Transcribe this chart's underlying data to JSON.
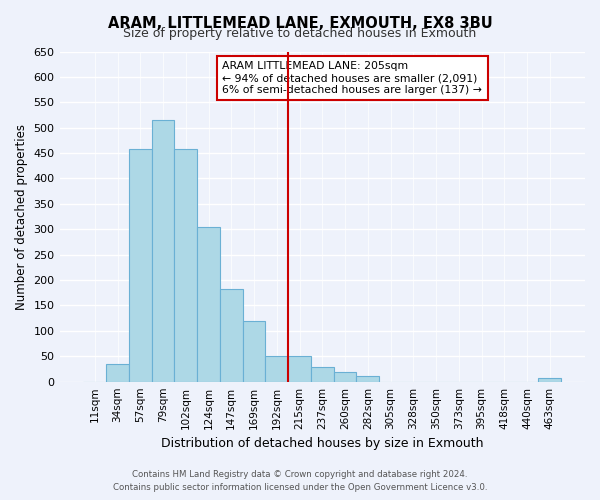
{
  "title": "ARAM, LITTLEMEAD LANE, EXMOUTH, EX8 3BU",
  "subtitle": "Size of property relative to detached houses in Exmouth",
  "xlabel": "Distribution of detached houses by size in Exmouth",
  "ylabel": "Number of detached properties",
  "bar_color": "#add8e6",
  "bar_edge_color": "#6ab0d4",
  "background_color": "#eef2fb",
  "categories": [
    "11sqm",
    "34sqm",
    "57sqm",
    "79sqm",
    "102sqm",
    "124sqm",
    "147sqm",
    "169sqm",
    "192sqm",
    "215sqm",
    "237sqm",
    "260sqm",
    "282sqm",
    "305sqm",
    "328sqm",
    "350sqm",
    "373sqm",
    "395sqm",
    "418sqm",
    "440sqm",
    "463sqm"
  ],
  "values": [
    0,
    35,
    458,
    515,
    458,
    305,
    183,
    120,
    50,
    50,
    28,
    20,
    12,
    0,
    0,
    0,
    0,
    0,
    0,
    0,
    7
  ],
  "ylim": [
    0,
    650
  ],
  "yticks": [
    0,
    50,
    100,
    150,
    200,
    250,
    300,
    350,
    400,
    450,
    500,
    550,
    600,
    650
  ],
  "vline_x": 8.5,
  "vline_color": "#cc0000",
  "annotation_title": "ARAM LITTLEMEAD LANE: 205sqm",
  "annotation_line1": "← 94% of detached houses are smaller (2,091)",
  "annotation_line2": "6% of semi-detached houses are larger (137) →",
  "footer_line1": "Contains HM Land Registry data © Crown copyright and database right 2024.",
  "footer_line2": "Contains public sector information licensed under the Open Government Licence v3.0."
}
